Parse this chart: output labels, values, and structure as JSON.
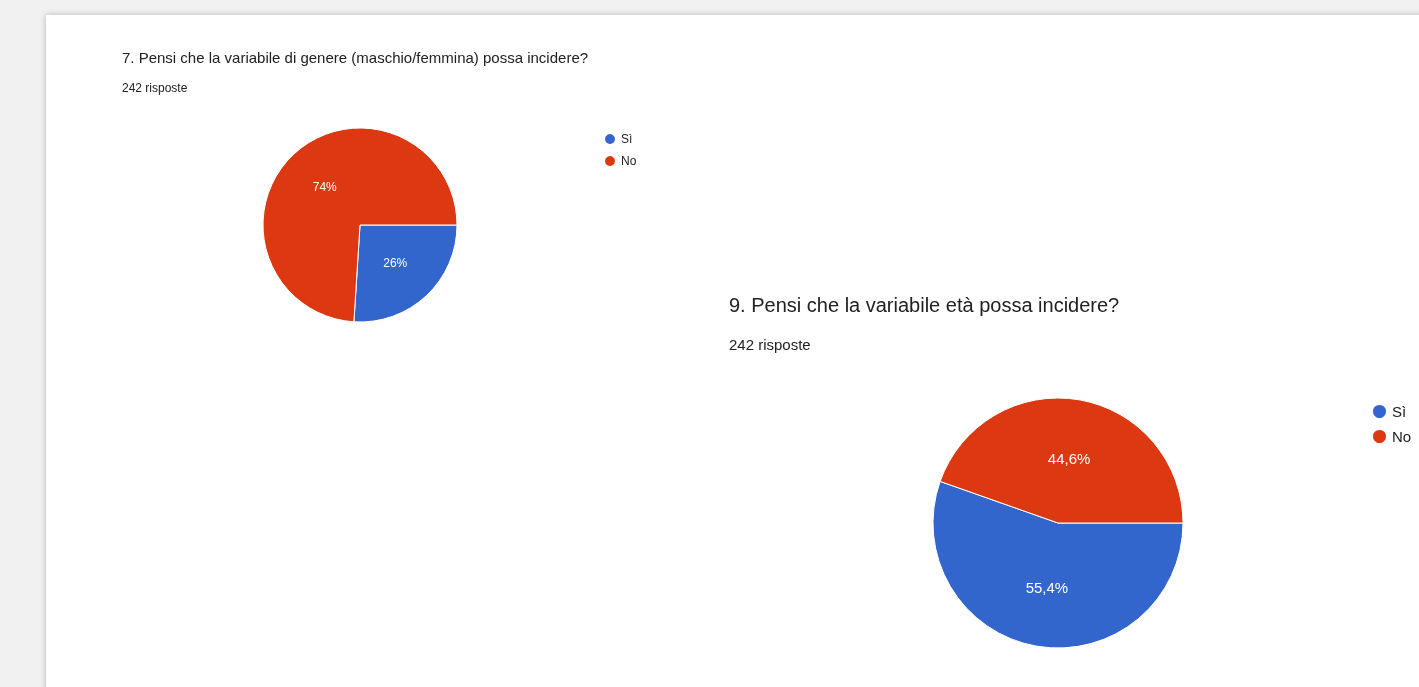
{
  "chart_data": [
    {
      "type": "pie",
      "title": "7. Pensi che la variabile di genere (maschio/femmina) possa incidere?",
      "subtitle": "242 risposte",
      "categories": [
        "Sì",
        "No"
      ],
      "values": [
        26,
        74
      ],
      "value_labels": [
        "26%",
        "74%"
      ],
      "colors": [
        "#3366cc",
        "#dc3912"
      ],
      "legend": "top right"
    },
    {
      "type": "pie",
      "title": "9. Pensi che la variabile età possa incidere?",
      "subtitle": "242 risposte",
      "categories": [
        "Sì",
        "No"
      ],
      "values": [
        55.4,
        44.6
      ],
      "value_labels": [
        "55,4%",
        "44,6%"
      ],
      "colors": [
        "#3366cc",
        "#dc3912"
      ],
      "legend": "top right"
    }
  ]
}
